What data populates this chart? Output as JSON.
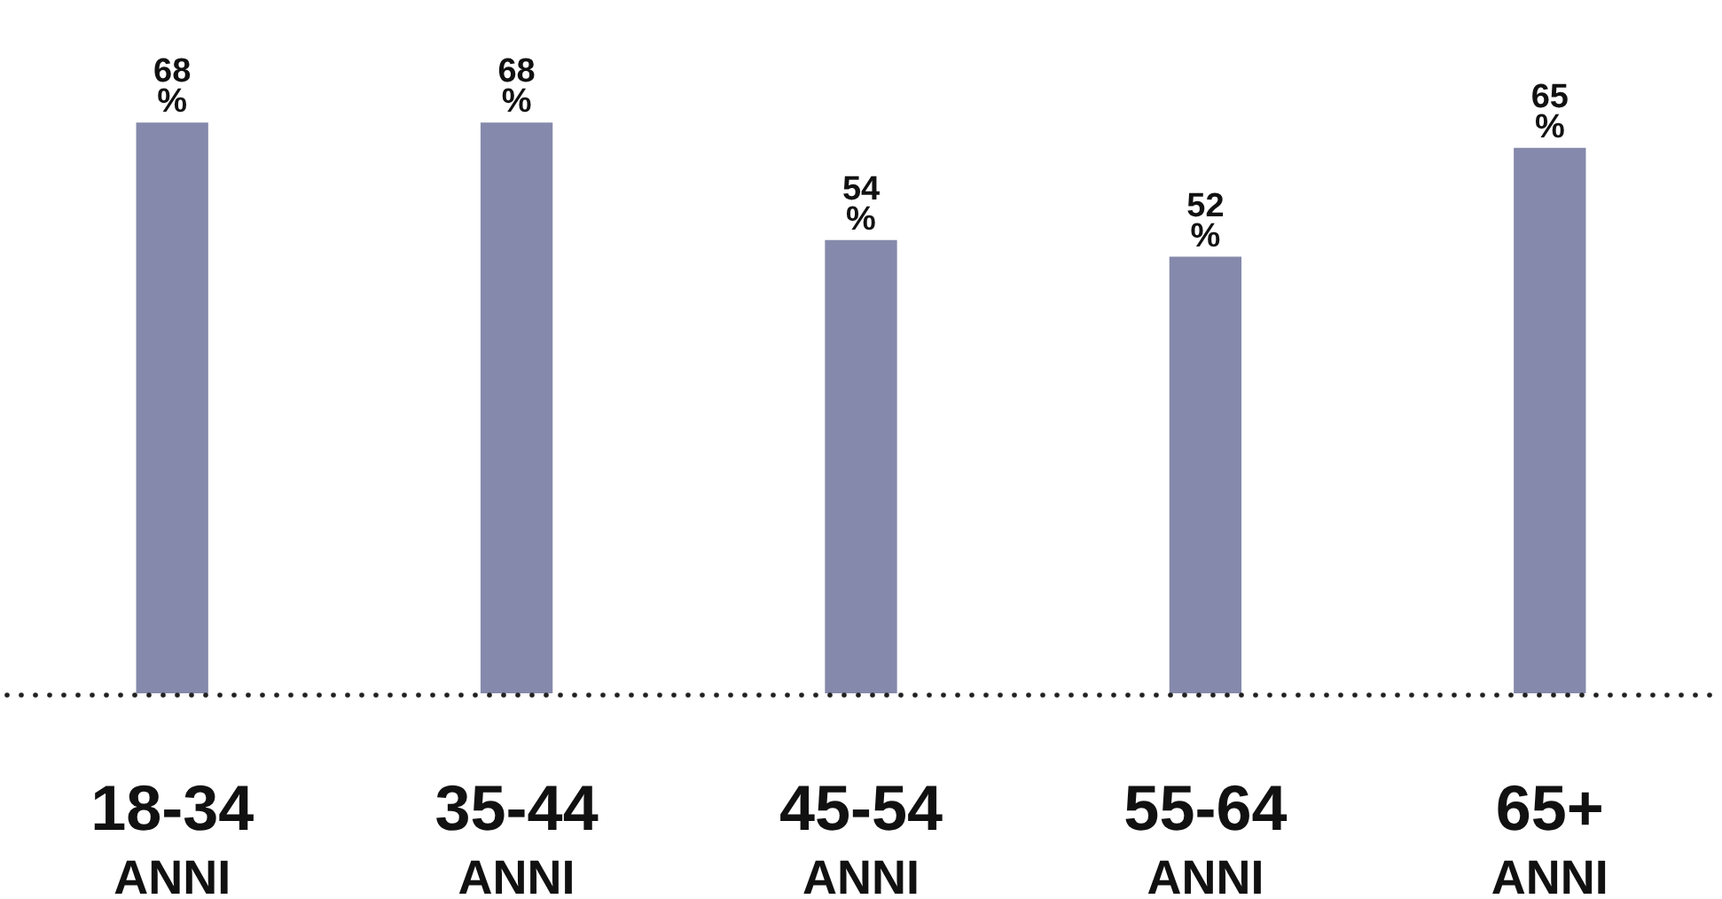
{
  "chart_data": {
    "type": "bar",
    "categories": [
      "18-34 ANNI",
      "35-44 ANNI",
      "45-54 ANNI",
      "55-64 ANNI",
      "65+ ANNI"
    ],
    "values": [
      68,
      68,
      54,
      52,
      65
    ],
    "value_labels": [
      "68 %",
      "68 %",
      "54 %",
      "52 %",
      "65 %"
    ],
    "color": "#8589ab"
  }
}
